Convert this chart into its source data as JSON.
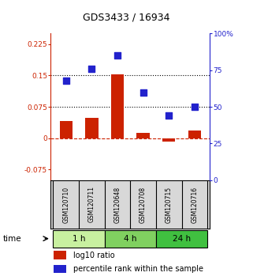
{
  "title": "GDS3433 / 16934",
  "samples": [
    "GSM120710",
    "GSM120711",
    "GSM120648",
    "GSM120708",
    "GSM120715",
    "GSM120716"
  ],
  "groups": [
    {
      "label": "1 h",
      "color": "#c8f0a0",
      "samples": [
        0,
        1
      ]
    },
    {
      "label": "4 h",
      "color": "#80d060",
      "samples": [
        2,
        3
      ]
    },
    {
      "label": "24 h",
      "color": "#40c040",
      "samples": [
        4,
        5
      ]
    }
  ],
  "log10_ratio": [
    0.042,
    0.048,
    0.152,
    0.012,
    -0.008,
    0.018
  ],
  "percentile_rank": [
    68,
    76,
    85,
    60,
    44,
    50
  ],
  "left_ylim": [
    -0.1,
    0.25
  ],
  "right_ylim": [
    0,
    100
  ],
  "left_yticks": [
    -0.075,
    0,
    0.075,
    0.15,
    0.225
  ],
  "right_yticks": [
    0,
    25,
    50,
    75,
    100
  ],
  "left_ytick_labels": [
    "-0.075",
    "0",
    "0.075",
    "0.15",
    "0.225"
  ],
  "right_ytick_labels": [
    "0",
    "25",
    "50",
    "75",
    "100%"
  ],
  "hline_values": [
    0.075,
    0.15
  ],
  "bar_color": "#cc2200",
  "dot_color": "#2222cc",
  "bar_width": 0.5,
  "dot_size": 28,
  "legend_items": [
    "log10 ratio",
    "percentile rank within the sample"
  ],
  "time_label": "time",
  "background_color": "#ffffff",
  "plot_bg_color": "#ffffff",
  "group_label_colors": [
    "#c8f0a0",
    "#80d060",
    "#40c040"
  ],
  "sample_box_color": "#d8d8d8"
}
